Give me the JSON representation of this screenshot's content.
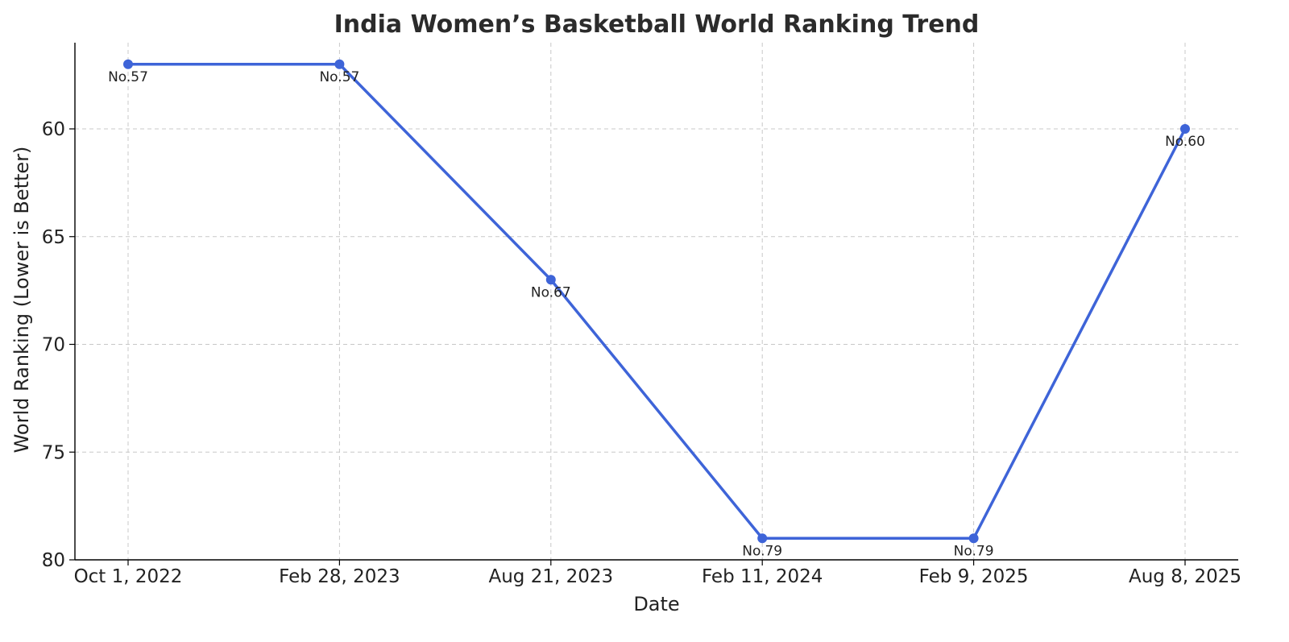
{
  "chart_data": {
    "type": "line",
    "title": "India Women’s Basketball World Ranking Trend",
    "xlabel": "Date",
    "ylabel": "World Ranking (Lower is Better)",
    "categories": [
      "Oct 1, 2022",
      "Feb 28, 2023",
      "Aug 21, 2023",
      "Feb 11, 2024",
      "Feb 9, 2025",
      "Aug 8, 2025"
    ],
    "series": [
      {
        "values": [
          57,
          57,
          67,
          79,
          79,
          60
        ]
      }
    ],
    "data_labels": [
      "No.57",
      "No.57",
      "No.67",
      "No.79",
      "No.79",
      "No.60"
    ],
    "y_ticks": [
      60,
      65,
      70,
      75,
      80
    ],
    "ylim": [
      80,
      56
    ],
    "y_inverted": true,
    "grid": true,
    "line_color": "#3e64d8"
  }
}
